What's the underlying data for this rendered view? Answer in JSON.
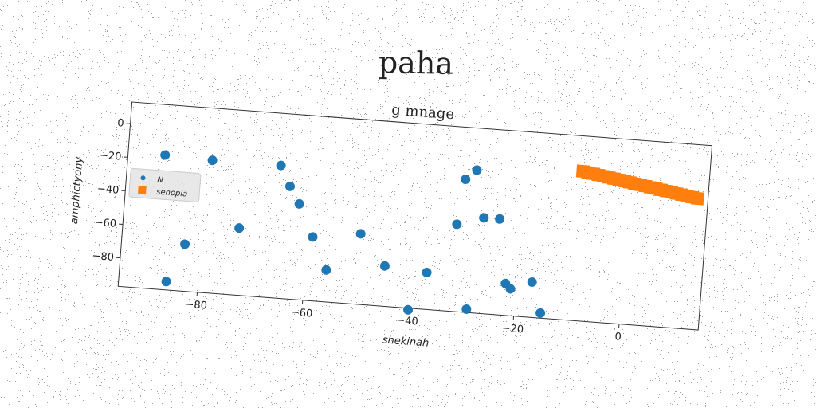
{
  "chart_data": {
    "type": "scatter",
    "suptitle": "paha",
    "title": "g mnage",
    "xlabel": "shekinah",
    "ylabel": "amphictyony",
    "xlim": [
      -95,
      15
    ],
    "ylim": [
      -97,
      13
    ],
    "xticks": [
      -80,
      -60,
      -40,
      -20,
      0
    ],
    "yticks": [
      0,
      -20,
      -40,
      -60,
      -80
    ],
    "grid": false,
    "legend_position": "center-left",
    "series": [
      {
        "name": "N",
        "marker": "circle",
        "color": "#1f77b4",
        "x": [
          -88,
          -79,
          -66,
          -64,
          -62,
          -73,
          -83,
          -86,
          -59,
          -56,
          -50,
          -45,
          -37,
          -40,
          -29,
          -31,
          -27,
          -32,
          -27,
          -24,
          -29,
          -22,
          -21,
          -17,
          -15
        ],
        "y": [
          -17,
          -18,
          -18,
          -30,
          -40,
          -57,
          -69,
          -92,
          -59,
          -78,
          -55,
          -73,
          -75,
          -98,
          -12,
          -18,
          -40,
          -45,
          -40,
          -40,
          -95,
          -78,
          -81,
          -76,
          -94
        ]
      },
      {
        "name": "senopia",
        "marker": "square",
        "color": "#ff7f0e",
        "x": [
          -9,
          -8,
          -7,
          -6,
          -5,
          -4,
          -3,
          -2,
          -1,
          0,
          1,
          2,
          3,
          4,
          5,
          6,
          7,
          8,
          9,
          10,
          11,
          12,
          13
        ],
        "y": [
          -8,
          -8.5,
          -9,
          -9.5,
          -10,
          -10.5,
          -11,
          -11.5,
          -12,
          -12.5,
          -13,
          -13.5,
          -14,
          -14.5,
          -15,
          -15.5,
          -16,
          -16.5,
          -17,
          -17.5,
          -18,
          -18.5,
          -19
        ]
      }
    ]
  }
}
